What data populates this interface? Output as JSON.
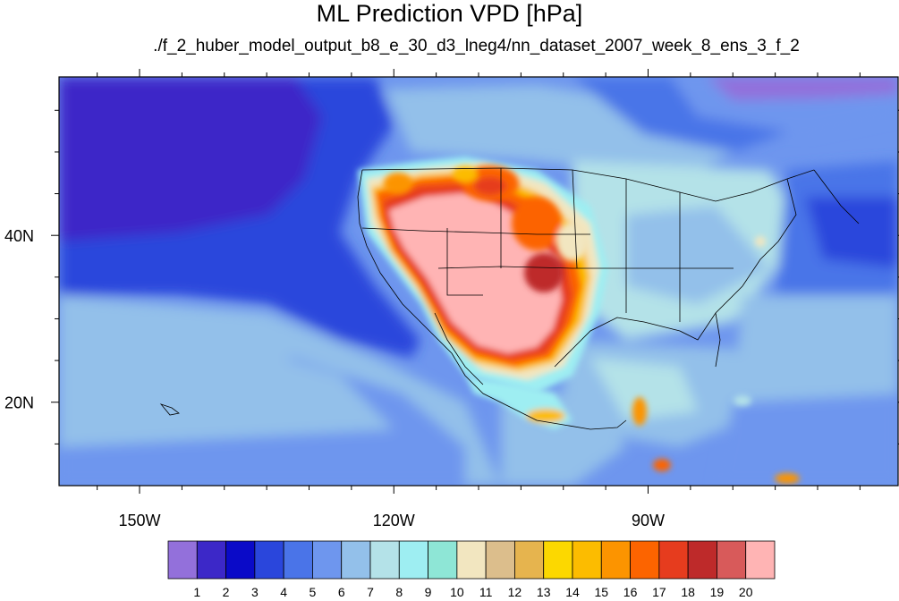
{
  "title": "ML Prediction VPD [hPa]",
  "subtitle": "./f_2_huber_model_output_b8_e_30_d3_lneg4/nn_dataset_2007_week_8_ens_3_f_2",
  "axes": {
    "x_ticks": [
      {
        "label": "150W",
        "lon": -150
      },
      {
        "label": "120W",
        "lon": -120
      },
      {
        "label": "90W",
        "lon": -90
      }
    ],
    "y_ticks": [
      {
        "label": "40N",
        "lat": 40
      },
      {
        "label": "20N",
        "lat": 20
      }
    ],
    "lon_range": [
      -159.5,
      -60.5
    ],
    "lat_range": [
      10,
      59
    ]
  },
  "colorbar": {
    "labels": [
      "1",
      "2",
      "3",
      "4",
      "5",
      "6",
      "7",
      "8",
      "9",
      "10",
      "11",
      "12",
      "13",
      "14",
      "15",
      "16",
      "17",
      "18",
      "19",
      "20"
    ],
    "colors": [
      "#9370db",
      "#3c28c8",
      "#0a0ac8",
      "#2a46dc",
      "#4a74e8",
      "#6e96ee",
      "#93c0ea",
      "#b4e2e8",
      "#9eeef2",
      "#8ee6d6",
      "#f2e6c0",
      "#dcbe8c",
      "#e6b44e",
      "#fcd800",
      "#fcbc00",
      "#fc9400",
      "#fc6400",
      "#e63c1e",
      "#be2a2a",
      "#d85a5a",
      "#ffb4b4"
    ]
  }
}
